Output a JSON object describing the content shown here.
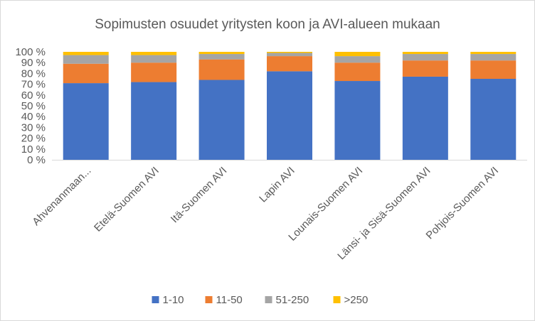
{
  "chart_data": {
    "type": "bar",
    "stacked": true,
    "percent_stacked": true,
    "title": "Sopimusten osuudet yritysten koon ja AVI-alueen mukaan",
    "categories": [
      "Ahvenanmaan...",
      "Etelä-Suomen AVI",
      "Itä-Suomen AVI",
      "Lapin AVI",
      "Lounais-Suomen AVI",
      "Länsi- ja Sisä-Suomen AVI",
      "Pohjois-Suomen AVI"
    ],
    "series": [
      {
        "name": "1-10",
        "color": "#4472C4",
        "values": [
          71,
          72,
          74,
          82,
          73,
          77,
          75
        ]
      },
      {
        "name": "11-50",
        "color": "#ED7D31",
        "values": [
          18,
          18,
          19,
          14,
          17,
          15,
          17
        ]
      },
      {
        "name": "51-250",
        "color": "#A5A5A5",
        "values": [
          8,
          7,
          5,
          3,
          6,
          6,
          6
        ]
      },
      {
        "name": ">250",
        "color": "#FFC000",
        "values": [
          3,
          3,
          2,
          1,
          4,
          2,
          2
        ]
      }
    ],
    "yticks": [
      "0 %",
      "10 %",
      "20 %",
      "30 %",
      "40 %",
      "50 %",
      "60 %",
      "70 %",
      "80 %",
      "90 %",
      "100 %"
    ],
    "ylim": [
      0,
      100
    ],
    "grid": false,
    "legend_position": "bottom"
  }
}
